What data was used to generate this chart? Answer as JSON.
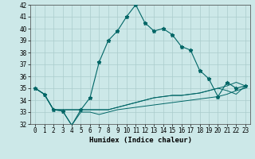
{
  "title": "",
  "xlabel": "Humidex (Indice chaleur)",
  "background_color": "#cce8e8",
  "grid_color": "#aacccc",
  "line_color": "#006666",
  "x": [
    0,
    1,
    2,
    3,
    4,
    5,
    6,
    7,
    8,
    9,
    10,
    11,
    12,
    13,
    14,
    15,
    16,
    17,
    18,
    19,
    20,
    21,
    22,
    23
  ],
  "main_series": [
    35.0,
    34.5,
    33.2,
    33.1,
    31.9,
    33.2,
    34.2,
    37.2,
    39.0,
    39.8,
    41.0,
    42.0,
    40.5,
    39.8,
    40.0,
    39.5,
    38.5,
    38.2,
    36.5,
    35.8,
    34.3,
    35.5,
    35.0,
    35.2
  ],
  "flat1": [
    35.0,
    34.5,
    33.2,
    33.1,
    31.9,
    33.0,
    33.0,
    32.8,
    33.0,
    33.2,
    33.3,
    33.4,
    33.5,
    33.6,
    33.7,
    33.8,
    33.9,
    34.0,
    34.1,
    34.2,
    34.3,
    34.5,
    34.8,
    35.0
  ],
  "flat2": [
    35.0,
    34.5,
    33.2,
    33.2,
    33.2,
    33.2,
    33.2,
    33.2,
    33.2,
    33.4,
    33.6,
    33.8,
    34.0,
    34.2,
    34.3,
    34.4,
    34.4,
    34.5,
    34.6,
    34.8,
    35.0,
    35.2,
    35.5,
    35.2
  ],
  "flat3": [
    35.0,
    34.5,
    33.2,
    33.2,
    33.2,
    33.2,
    33.2,
    33.2,
    33.2,
    33.4,
    33.6,
    33.8,
    34.0,
    34.2,
    34.3,
    34.4,
    34.4,
    34.5,
    34.6,
    34.8,
    35.0,
    34.8,
    34.5,
    35.2
  ],
  "ylim": [
    32,
    42
  ],
  "xlim": [
    -0.5,
    23.5
  ],
  "yticks": [
    32,
    33,
    34,
    35,
    36,
    37,
    38,
    39,
    40,
    41,
    42
  ],
  "xticks": [
    0,
    1,
    2,
    3,
    4,
    5,
    6,
    7,
    8,
    9,
    10,
    11,
    12,
    13,
    14,
    15,
    16,
    17,
    18,
    19,
    20,
    21,
    22,
    23
  ],
  "tick_fontsize": 5.5,
  "xlabel_fontsize": 6.5
}
